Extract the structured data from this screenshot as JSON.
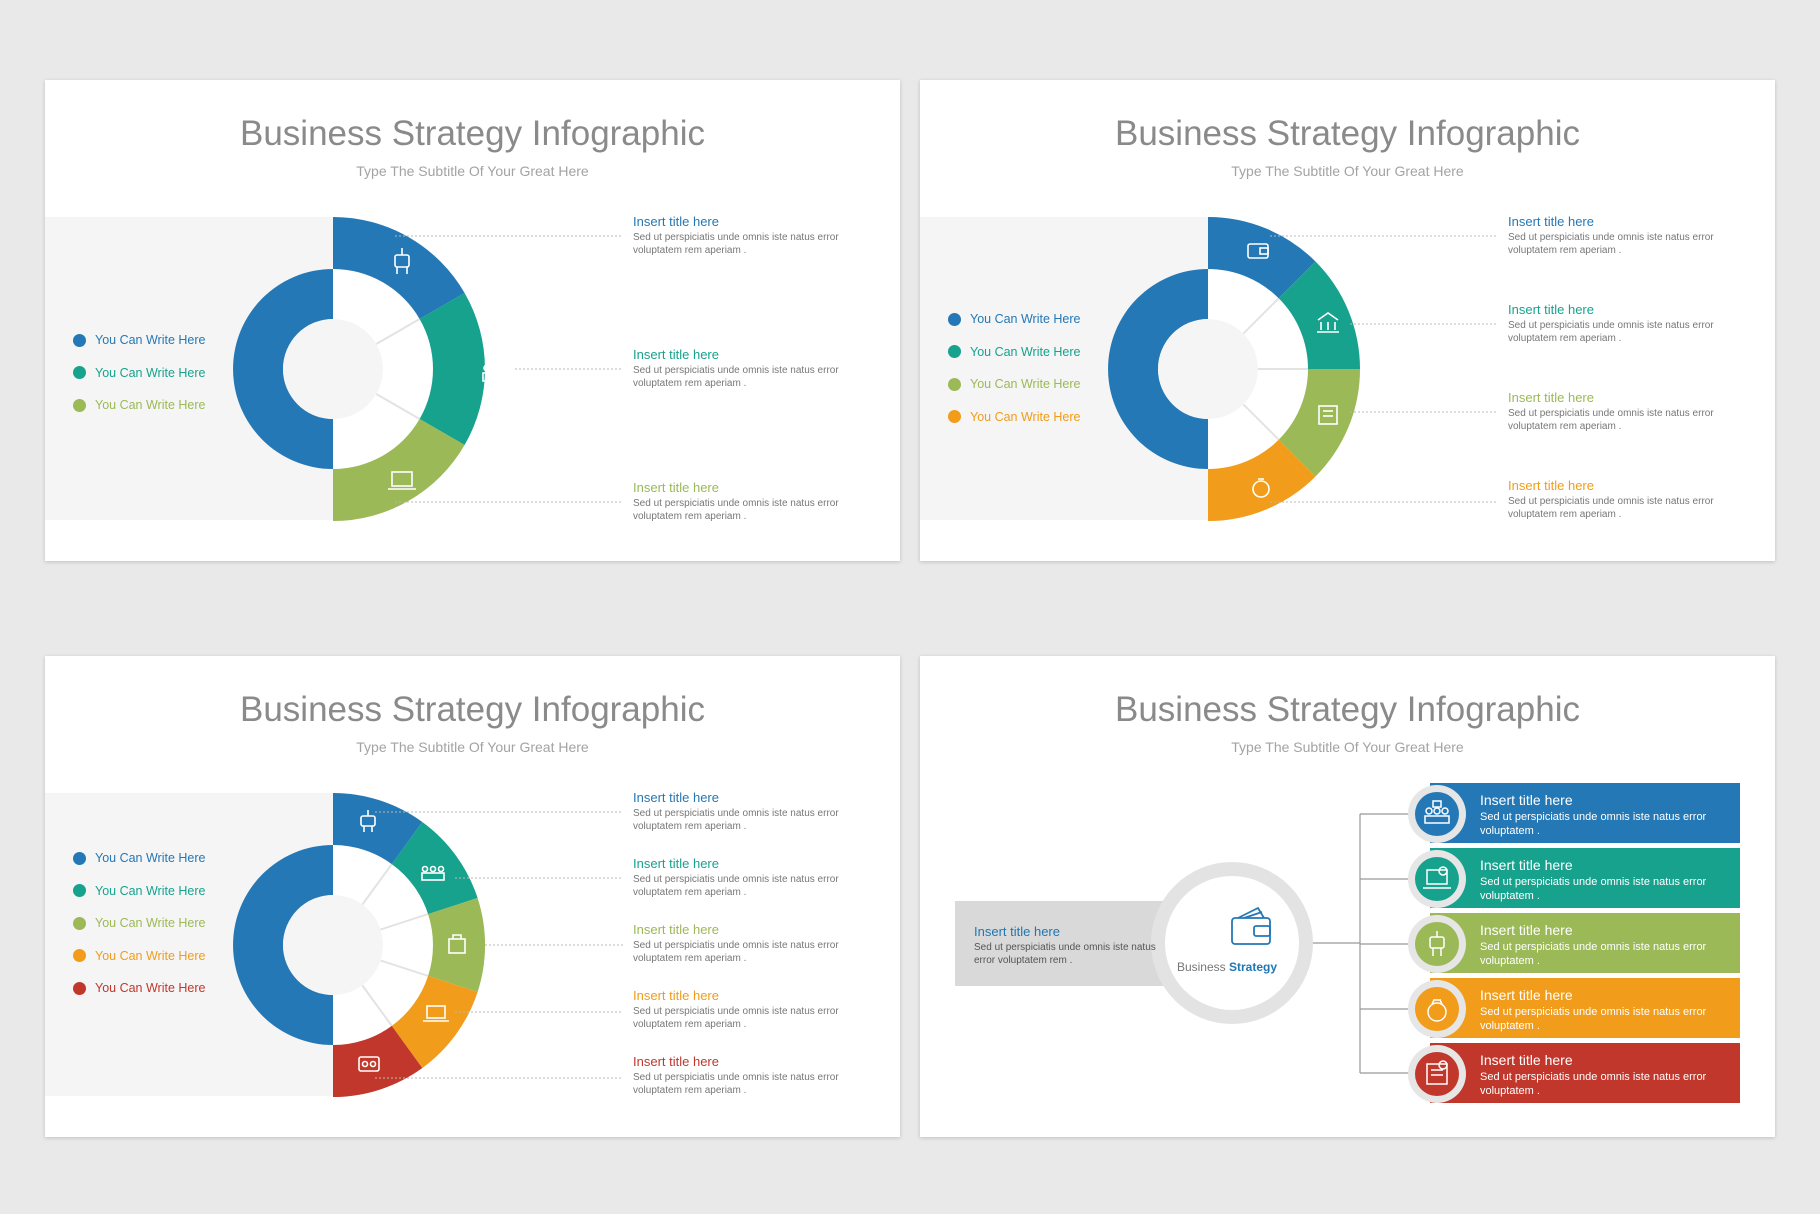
{
  "slides": [
    {
      "title": "Business Strategy Infographic",
      "subtitle": "Type The Subtitle Of Your Great Here",
      "legend": [
        "You Can Write Here",
        "You Can Write Here",
        "You Can Write Here"
      ],
      "items": [
        {
          "title": "Insert title here",
          "desc": "Sed ut perspiciatis unde omnis iste natus error voluptatem rem aperiam ."
        },
        {
          "title": "Insert title here",
          "desc": "Sed ut perspiciatis unde omnis iste natus error voluptatem rem aperiam ."
        },
        {
          "title": "Insert title here",
          "desc": "Sed ut perspiciatis unde omnis iste natus error voluptatem rem aperiam ."
        }
      ]
    },
    {
      "title": "Business Strategy Infographic",
      "subtitle": "Type The Subtitle Of Your Great Here",
      "legend": [
        "You Can Write Here",
        "You Can Write Here",
        "You Can Write Here",
        "You Can Write Here"
      ],
      "items": [
        {
          "title": "Insert title here",
          "desc": "Sed ut perspiciatis unde omnis iste natus error voluptatem rem aperiam ."
        },
        {
          "title": "Insert title here",
          "desc": "Sed ut perspiciatis unde omnis iste natus error voluptatem rem aperiam ."
        },
        {
          "title": "Insert title here",
          "desc": "Sed ut perspiciatis unde omnis iste natus error voluptatem rem aperiam ."
        },
        {
          "title": "Insert title here",
          "desc": "Sed ut perspiciatis unde omnis iste natus error voluptatem rem aperiam ."
        }
      ]
    },
    {
      "title": "Business Strategy Infographic",
      "subtitle": "Type The Subtitle Of Your Great Here",
      "legend": [
        "You Can Write Here",
        "You Can Write Here",
        "You Can Write Here",
        "You Can Write Here",
        "You Can Write Here"
      ],
      "items": [
        {
          "title": "Insert title here",
          "desc": "Sed ut perspiciatis unde omnis iste natus error voluptatem rem aperiam ."
        },
        {
          "title": "Insert title here",
          "desc": "Sed ut perspiciatis unde omnis iste natus error voluptatem rem aperiam ."
        },
        {
          "title": "Insert title here",
          "desc": "Sed ut perspiciatis unde omnis iste natus error voluptatem rem aperiam ."
        },
        {
          "title": "Insert title here",
          "desc": "Sed ut perspiciatis unde omnis iste natus error voluptatem rem aperiam ."
        },
        {
          "title": "Insert title here",
          "desc": "Sed ut perspiciatis unde omnis iste natus error voluptatem rem aperiam ."
        }
      ]
    },
    {
      "title": "Business Strategy Infographic",
      "subtitle": "Type The Subtitle Of Your Great Here",
      "left_title": "Insert title here",
      "left_desc": "Sed ut perspiciatis unde omnis iste natus error voluptatem rem .",
      "center_label_1": "Business",
      "center_label_2": "Strategy",
      "bars": [
        {
          "title": "Insert title here",
          "desc": "Sed ut perspiciatis unde omnis iste natus error voluptatem ."
        },
        {
          "title": "Insert title here",
          "desc": "Sed ut perspiciatis unde omnis iste natus error voluptatem ."
        },
        {
          "title": "Insert title here",
          "desc": "Sed ut perspiciatis unde omnis iste natus error voluptatem ."
        },
        {
          "title": "Insert title here",
          "desc": "Sed ut perspiciatis unde omnis iste natus error voluptatem ."
        },
        {
          "title": "Insert title here",
          "desc": "Sed ut perspiciatis unde omnis iste natus error voluptatem ."
        }
      ]
    }
  ],
  "colors": {
    "blue": "#2478b5",
    "teal": "#17a28e",
    "green": "#9bb957",
    "orange": "#f19c1a",
    "red": "#c1372c"
  }
}
